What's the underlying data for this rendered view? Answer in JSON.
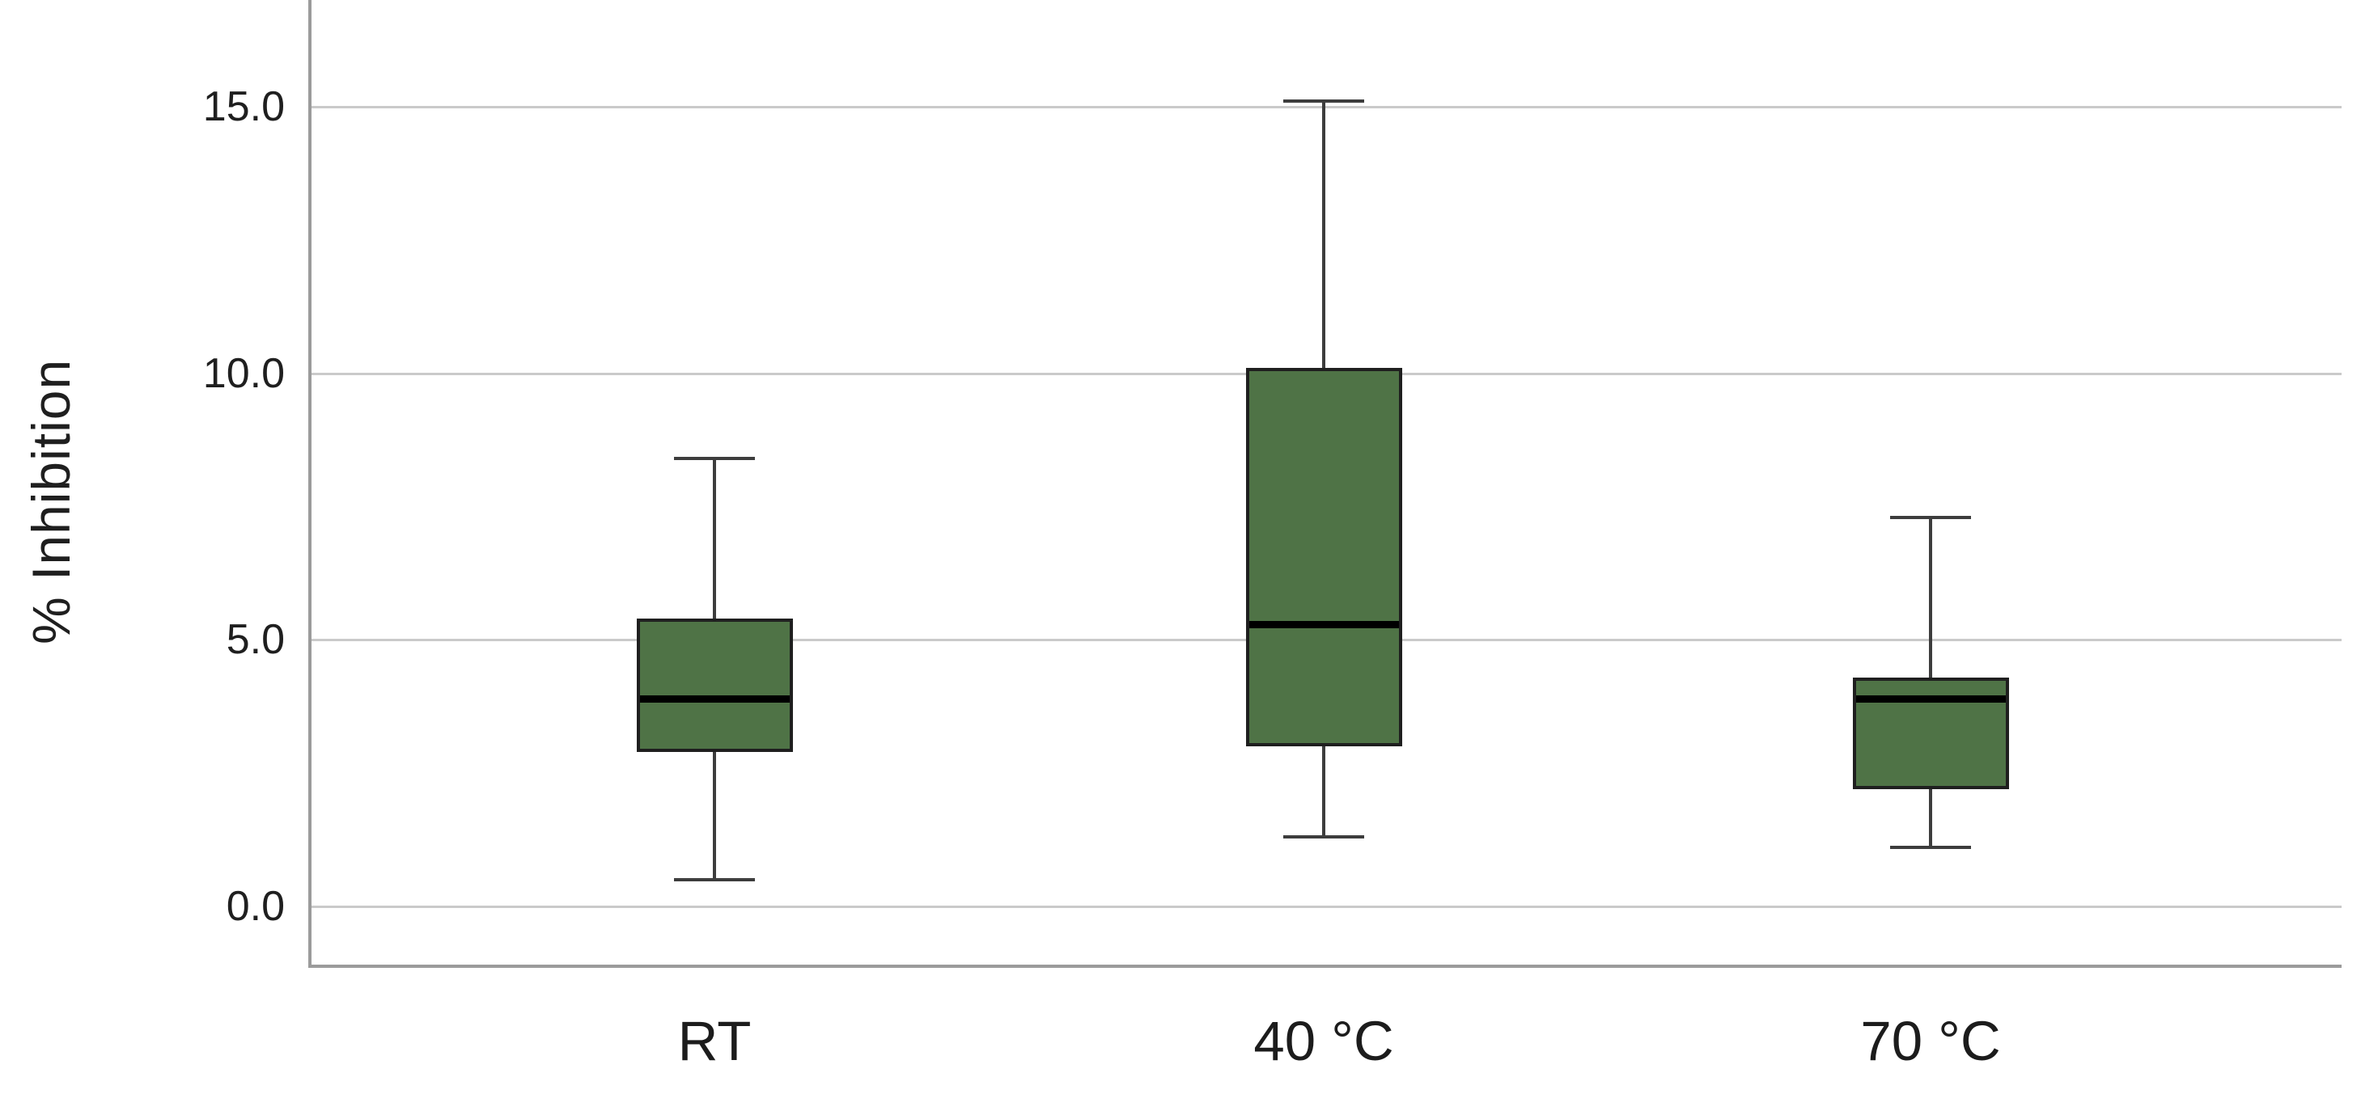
{
  "chart_data": {
    "type": "boxplot",
    "title": "",
    "xlabel": "",
    "ylabel": "% Inhibition",
    "categories": [
      "RT",
      "40 °C",
      "70 °C"
    ],
    "series": [
      {
        "category": "RT",
        "min": 0.5,
        "q1": 2.9,
        "median": 3.9,
        "q3": 5.4,
        "max": 8.4
      },
      {
        "category": "40 °C",
        "min": 1.3,
        "q1": 3.0,
        "median": 5.3,
        "q3": 10.1,
        "max": 15.1
      },
      {
        "category": "70 °C",
        "min": 1.1,
        "q1": 2.2,
        "median": 3.9,
        "q3": 4.3,
        "max": 7.3
      }
    ],
    "yticks": [
      {
        "value": 0,
        "label": "0.0"
      },
      {
        "value": 5,
        "label": "5.0"
      },
      {
        "value": 10,
        "label": "10.0"
      },
      {
        "value": 15,
        "label": "15.0"
      }
    ],
    "ylim": [
      -1.1,
      17.0
    ],
    "grid": "horizontal",
    "legend": "none",
    "colors": {
      "box_fill": "#4f7346",
      "box_border": "#1f1f1f",
      "median": "#000000",
      "whisker": "#3d3d3d",
      "gridline": "#cacaca",
      "axis": "#9b9b9b",
      "text": "#1f1f1f",
      "background": "#ffffff"
    }
  }
}
